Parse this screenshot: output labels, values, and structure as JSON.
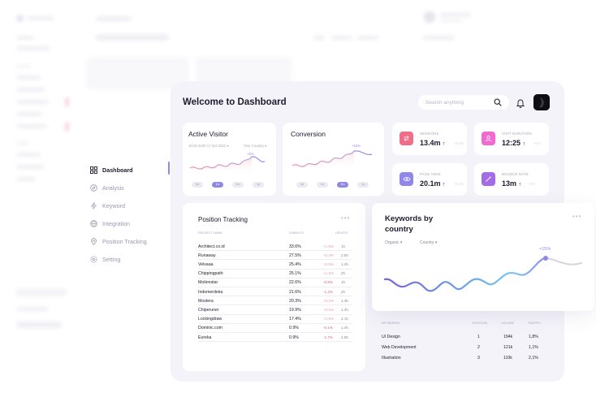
{
  "nav": {
    "items": [
      {
        "label": "Dashboard",
        "icon": "grid-icon",
        "active": true
      },
      {
        "label": "Analysis",
        "icon": "compass-icon"
      },
      {
        "label": "Keyword",
        "icon": "bolt-icon"
      },
      {
        "label": "Integration",
        "icon": "globe-icon"
      },
      {
        "label": "Position Tracking",
        "icon": "location-pin-icon"
      },
      {
        "label": "Setting",
        "icon": "gear-icon"
      }
    ]
  },
  "header": {
    "title": "Welcome to Dashboard",
    "search_placeholder": "Search anything"
  },
  "active_visitor": {
    "title": "Active Visitor",
    "filter_date": "10.03.2020 17 Oct 2021",
    "filter_country": "Your Country",
    "peak_label": "+5%",
    "tabs": [
      "6d",
      "1w",
      "1m",
      "1y"
    ],
    "active_tab": 1
  },
  "conversion": {
    "title": "Conversion",
    "peak_label": "+15%",
    "tabs": [
      "6d",
      "1w",
      "1m",
      "1y"
    ],
    "active_tab": 2
  },
  "stats": [
    {
      "label": "SESSIONS",
      "value": "13.4m",
      "change": "+5.4%",
      "icon": "refresh-icon",
      "color": "#ef6f8a"
    },
    {
      "label": "VISIT DURATION",
      "value": "12:25",
      "change": "+1%",
      "icon": "user-icon",
      "color": "#f06ad0"
    },
    {
      "label": "PAGE VIEW",
      "value": "20.1m",
      "change": "+2.1%",
      "icon": "eye-icon",
      "color": "#9087e8"
    },
    {
      "label": "BOUNCE RATE",
      "value": "13m",
      "change": "+1%",
      "icon": "wand-icon",
      "color": "#a46be6"
    }
  ],
  "position_tracking": {
    "title": "Position Tracking",
    "columns": [
      "PROJECT NAME",
      "VISIBILITY",
      "UPDATE"
    ],
    "rows": [
      {
        "name": "Architect.co.id",
        "visibility": "33.6%",
        "change": "+1.6%",
        "update": "1h"
      },
      {
        "name": "Runaway",
        "visibility": "27.5%",
        "change": "+0.3%",
        "update": "2.5h"
      },
      {
        "name": "Velvaaa",
        "visibility": "25.4%",
        "change": "+0.5%",
        "update": "1.4h"
      },
      {
        "name": "Chippingpath",
        "visibility": "25.1%",
        "change": "+1.3%",
        "update": "2h"
      },
      {
        "name": "Motionstar",
        "visibility": "22.6%",
        "change": "-0.5%",
        "update": "1h"
      },
      {
        "name": "Indomerdeka",
        "visibility": "21.6%",
        "change": "-1.2%",
        "update": "2h"
      },
      {
        "name": "Mostera",
        "visibility": "20.3%",
        "change": "+0.2%",
        "update": "1.3h"
      },
      {
        "name": "Chiperuner",
        "visibility": "19.9%",
        "change": "+0.1%",
        "update": "1.4h"
      },
      {
        "name": "Lockingdraw",
        "visibility": "17.4%",
        "change": "+1.6%",
        "update": "2.1h"
      },
      {
        "name": "Dominic.com",
        "visibility": "0.9%",
        "change": "-0.1%",
        "update": "1.4h"
      },
      {
        "name": "Eureka",
        "visibility": "0.9%",
        "change": "-1.7%",
        "update": "2.8h"
      }
    ]
  },
  "keywords_country": {
    "title_line1": "Keywords by",
    "title_line2": "country",
    "filter1": "Organic",
    "filter2": "Country",
    "peak_label": "+15%"
  },
  "keywords_table": {
    "columns": [
      "KEYWORDS",
      "POSITION",
      "VOLUME",
      "TRAFFIC"
    ],
    "rows": [
      {
        "keyword": "UI Design",
        "position": "1",
        "volume": "194k",
        "traffic": "1,8%"
      },
      {
        "keyword": "Web Development",
        "position": "2",
        "volume": "121k",
        "traffic": "1,1%"
      },
      {
        "keyword": "Illustration",
        "position": "3",
        "volume": "110k",
        "traffic": "2,1%"
      }
    ]
  }
}
